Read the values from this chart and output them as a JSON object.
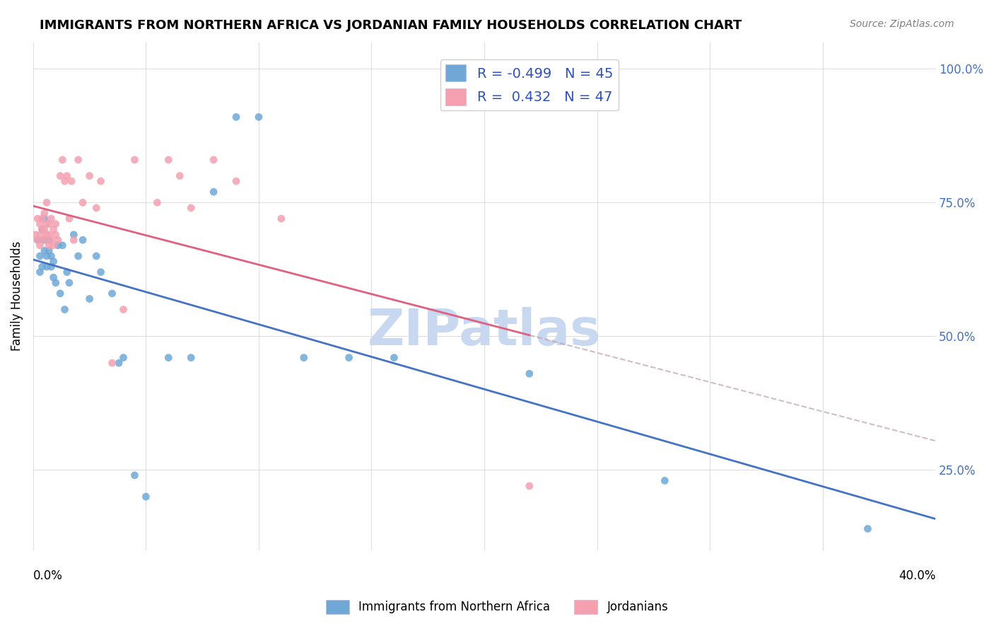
{
  "title": "IMMIGRANTS FROM NORTHERN AFRICA VS JORDANIAN FAMILY HOUSEHOLDS CORRELATION CHART",
  "source": "Source: ZipAtlas.com",
  "ylabel": "Family Households",
  "ytick_labels": [
    "25.0%",
    "50.0%",
    "75.0%",
    "100.0%"
  ],
  "ytick_values": [
    0.25,
    0.5,
    0.75,
    1.0
  ],
  "xlim": [
    0.0,
    0.4
  ],
  "ylim": [
    0.1,
    1.05
  ],
  "legend_r_blue": "-0.499",
  "legend_n_blue": "45",
  "legend_r_pink": "0.432",
  "legend_n_pink": "47",
  "blue_color": "#6fa8d6",
  "pink_color": "#f4a0b0",
  "blue_line_color": "#4472c4",
  "pink_line_color": "#e06080",
  "watermark": "ZIPatlas",
  "watermark_color": "#c8d8f0",
  "blue_x": [
    0.002,
    0.003,
    0.003,
    0.004,
    0.004,
    0.005,
    0.005,
    0.005,
    0.006,
    0.006,
    0.007,
    0.007,
    0.008,
    0.008,
    0.009,
    0.009,
    0.01,
    0.011,
    0.012,
    0.013,
    0.014,
    0.015,
    0.016,
    0.018,
    0.02,
    0.022,
    0.025,
    0.028,
    0.03,
    0.035,
    0.038,
    0.04,
    0.045,
    0.05,
    0.06,
    0.07,
    0.08,
    0.09,
    0.1,
    0.12,
    0.14,
    0.16,
    0.22,
    0.28,
    0.37
  ],
  "blue_y": [
    0.68,
    0.65,
    0.62,
    0.7,
    0.63,
    0.66,
    0.68,
    0.72,
    0.65,
    0.63,
    0.66,
    0.68,
    0.65,
    0.63,
    0.61,
    0.64,
    0.6,
    0.67,
    0.58,
    0.67,
    0.55,
    0.62,
    0.6,
    0.69,
    0.65,
    0.68,
    0.57,
    0.65,
    0.62,
    0.58,
    0.45,
    0.46,
    0.24,
    0.2,
    0.46,
    0.46,
    0.77,
    0.91,
    0.91,
    0.46,
    0.46,
    0.46,
    0.43,
    0.23,
    0.14
  ],
  "pink_x": [
    0.001,
    0.002,
    0.002,
    0.003,
    0.003,
    0.003,
    0.004,
    0.004,
    0.005,
    0.005,
    0.005,
    0.006,
    0.006,
    0.006,
    0.007,
    0.007,
    0.007,
    0.008,
    0.008,
    0.009,
    0.009,
    0.01,
    0.01,
    0.011,
    0.012,
    0.013,
    0.014,
    0.015,
    0.016,
    0.017,
    0.018,
    0.02,
    0.022,
    0.025,
    0.028,
    0.03,
    0.035,
    0.04,
    0.045,
    0.055,
    0.06,
    0.065,
    0.07,
    0.08,
    0.09,
    0.11,
    0.22
  ],
  "pink_y": [
    0.69,
    0.68,
    0.72,
    0.67,
    0.69,
    0.71,
    0.7,
    0.72,
    0.68,
    0.7,
    0.73,
    0.69,
    0.71,
    0.75,
    0.67,
    0.69,
    0.71,
    0.68,
    0.72,
    0.7,
    0.67,
    0.69,
    0.71,
    0.68,
    0.8,
    0.83,
    0.79,
    0.8,
    0.72,
    0.79,
    0.68,
    0.83,
    0.75,
    0.8,
    0.74,
    0.79,
    0.45,
    0.55,
    0.83,
    0.75,
    0.83,
    0.8,
    0.74,
    0.83,
    0.79,
    0.72,
    0.22
  ]
}
